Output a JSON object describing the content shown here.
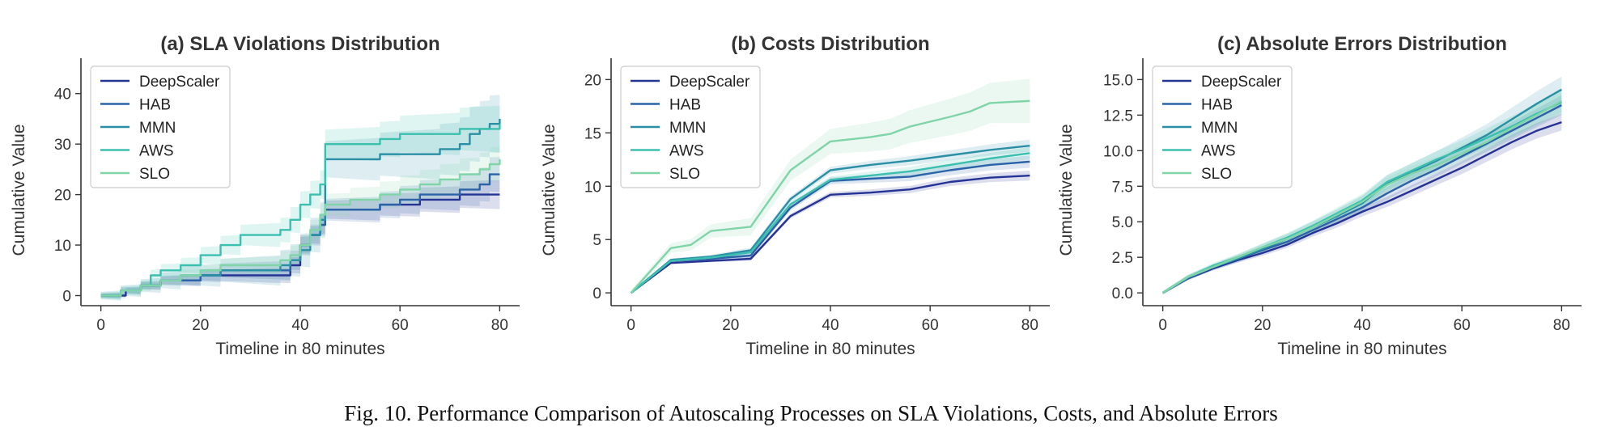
{
  "caption": "Fig. 10.  Performance Comparison of Autoscaling Processes on SLA Violations, Costs, and Absolute Errors",
  "series_colors": [
    "#253494",
    "#2c63a8",
    "#2a8fa5",
    "#3bbfae",
    "#7fd4a8"
  ],
  "chart_data": [
    {
      "type": "line",
      "title": "(a) SLA Violations Distribution",
      "xlabel": "Timeline in 80 minutes",
      "ylabel": "Cumulative Value",
      "xlim": [
        -4,
        84
      ],
      "ylim": [
        -2,
        47
      ],
      "xticks": [
        0,
        20,
        40,
        60,
        80
      ],
      "yticks": [
        0,
        10,
        20,
        30,
        40
      ],
      "ytick_labels": [
        "0",
        "10",
        "20",
        "30",
        "40"
      ],
      "step": true,
      "legend": "top-left",
      "series": [
        {
          "name": "DeepScaler",
          "x": [
            0,
            4,
            5,
            8,
            12,
            16,
            20,
            24,
            28,
            32,
            36,
            38,
            40,
            42,
            44,
            45,
            50,
            54,
            56,
            60,
            64,
            68,
            72,
            76,
            80
          ],
          "y": [
            0,
            0,
            1,
            2,
            3,
            3,
            4,
            4,
            4,
            4,
            4,
            6,
            10,
            12,
            14,
            17,
            17,
            17,
            18,
            18,
            19,
            19,
            20,
            20,
            20
          ],
          "band": 2.5
        },
        {
          "name": "HAB",
          "x": [
            0,
            4,
            8,
            12,
            16,
            20,
            24,
            28,
            32,
            36,
            38,
            40,
            42,
            44,
            45,
            50,
            56,
            60,
            64,
            68,
            72,
            76,
            78,
            80
          ],
          "y": [
            0,
            1,
            2,
            3,
            3,
            4,
            5,
            5,
            5,
            5,
            7,
            10,
            12,
            14,
            17,
            17,
            18,
            19,
            20,
            20,
            21,
            22,
            24,
            24
          ],
          "band": 3
        },
        {
          "name": "MMN",
          "x": [
            0,
            4,
            8,
            12,
            16,
            20,
            24,
            28,
            32,
            36,
            38,
            40,
            42,
            44,
            45,
            50,
            56,
            60,
            64,
            68,
            72,
            74,
            76,
            78,
            80
          ],
          "y": [
            0,
            1,
            2,
            3,
            4,
            4,
            5,
            5,
            5,
            6,
            7,
            9,
            12,
            15,
            27,
            27,
            28,
            28,
            28,
            29,
            30,
            32,
            33,
            34,
            35
          ],
          "band": 5
        },
        {
          "name": "AWS",
          "x": [
            0,
            4,
            8,
            10,
            12,
            16,
            20,
            24,
            28,
            32,
            36,
            38,
            40,
            42,
            44,
            45,
            50,
            56,
            60,
            64,
            68,
            72,
            76,
            80
          ],
          "y": [
            0,
            1,
            2,
            4,
            5,
            6,
            8,
            10,
            12,
            12,
            13,
            15,
            18,
            20,
            22,
            30,
            30,
            31,
            32,
            32,
            32,
            33,
            33,
            34
          ],
          "band": 4
        },
        {
          "name": "SLO",
          "x": [
            0,
            4,
            8,
            12,
            16,
            20,
            24,
            28,
            32,
            36,
            38,
            40,
            42,
            44,
            45,
            50,
            56,
            60,
            64,
            68,
            72,
            76,
            78,
            80
          ],
          "y": [
            0,
            1,
            2,
            3,
            4,
            5,
            6,
            6,
            6,
            7,
            8,
            10,
            13,
            16,
            18,
            19,
            20,
            21,
            22,
            23,
            24,
            25,
            26,
            27
          ],
          "band": 3
        }
      ]
    },
    {
      "type": "line",
      "title": "(b) Costs Distribution",
      "xlabel": "Timeline in 80 minutes",
      "ylabel": "Cumulative Value",
      "xlim": [
        -4,
        84
      ],
      "ylim": [
        -1.2,
        22
      ],
      "xticks": [
        0,
        20,
        40,
        60,
        80
      ],
      "yticks": [
        0,
        5,
        10,
        15,
        20
      ],
      "ytick_labels": [
        "0",
        "5",
        "10",
        "15",
        "20"
      ],
      "step": false,
      "legend": "top-left",
      "series": [
        {
          "name": "DeepScaler",
          "x": [
            0,
            8,
            16,
            24,
            32,
            40,
            48,
            56,
            64,
            72,
            80
          ],
          "y": [
            0,
            2.8,
            3.0,
            3.2,
            7.2,
            9.2,
            9.4,
            9.7,
            10.4,
            10.8,
            11.0
          ],
          "band": 0.4
        },
        {
          "name": "HAB",
          "x": [
            0,
            8,
            16,
            24,
            32,
            40,
            48,
            56,
            64,
            72,
            80
          ],
          "y": [
            0,
            3.0,
            3.2,
            3.5,
            8.0,
            10.5,
            10.7,
            10.9,
            11.5,
            12.0,
            12.3
          ],
          "band": 0.5
        },
        {
          "name": "MMN",
          "x": [
            0,
            8,
            16,
            24,
            32,
            40,
            48,
            56,
            64,
            72,
            80
          ],
          "y": [
            0,
            3.1,
            3.4,
            4.0,
            8.8,
            11.5,
            12.0,
            12.4,
            12.9,
            13.4,
            13.8
          ],
          "band": 0.5
        },
        {
          "name": "AWS",
          "x": [
            0,
            8,
            16,
            24,
            32,
            40,
            48,
            56,
            64,
            72,
            80
          ],
          "y": [
            0,
            3.0,
            3.3,
            3.8,
            8.3,
            10.6,
            11.0,
            11.4,
            12.0,
            12.6,
            13.1
          ],
          "band": 0.5
        },
        {
          "name": "SLO",
          "x": [
            0,
            8,
            12,
            16,
            24,
            32,
            40,
            48,
            52,
            56,
            64,
            68,
            72,
            76,
            80
          ],
          "y": [
            0,
            4.2,
            4.5,
            5.8,
            6.2,
            11.5,
            14.2,
            14.6,
            14.9,
            15.6,
            16.5,
            17.0,
            17.8,
            17.9,
            18.0
          ],
          "band": 1.8
        }
      ]
    },
    {
      "type": "line",
      "title": "(c) Absolute Errors Distribution",
      "xlabel": "Timeline in 80 minutes",
      "ylabel": "Cumulative Value",
      "xlim": [
        -4,
        84
      ],
      "ylim": [
        -0.9,
        16.5
      ],
      "xticks": [
        0,
        20,
        40,
        60,
        80
      ],
      "yticks": [
        0,
        2.5,
        5,
        7.5,
        10,
        12.5,
        15
      ],
      "ytick_labels": [
        "0.0",
        "2.5",
        "5.0",
        "7.5",
        "10.0",
        "12.5",
        "15.0"
      ],
      "step": false,
      "legend": "top-left",
      "series": [
        {
          "name": "DeepScaler",
          "x": [
            0,
            5,
            10,
            15,
            20,
            25,
            30,
            35,
            40,
            45,
            50,
            55,
            60,
            65,
            70,
            75,
            80
          ],
          "y": [
            0,
            1.0,
            1.7,
            2.3,
            2.8,
            3.4,
            4.2,
            4.9,
            5.7,
            6.4,
            7.2,
            8.0,
            8.8,
            9.7,
            10.6,
            11.4,
            12.0
          ],
          "band": 0.5
        },
        {
          "name": "HAB",
          "x": [
            0,
            5,
            10,
            15,
            20,
            25,
            30,
            35,
            40,
            45,
            50,
            55,
            60,
            65,
            70,
            75,
            80
          ],
          "y": [
            0,
            1.0,
            1.8,
            2.4,
            3.0,
            3.6,
            4.4,
            5.2,
            6.0,
            7.0,
            7.9,
            8.7,
            9.6,
            10.5,
            11.4,
            12.3,
            13.2
          ],
          "band": 0.6
        },
        {
          "name": "MMN",
          "x": [
            0,
            5,
            10,
            15,
            20,
            25,
            30,
            35,
            40,
            45,
            50,
            55,
            60,
            65,
            70,
            75,
            80
          ],
          "y": [
            0,
            1.1,
            1.8,
            2.4,
            3.1,
            3.8,
            4.6,
            5.4,
            6.3,
            7.7,
            8.5,
            9.3,
            10.2,
            11.1,
            12.2,
            13.3,
            14.3
          ],
          "band": 0.8
        },
        {
          "name": "AWS",
          "x": [
            0,
            5,
            10,
            15,
            20,
            25,
            30,
            35,
            40,
            45,
            50,
            55,
            60,
            65,
            70,
            75,
            80
          ],
          "y": [
            0,
            1.1,
            1.9,
            2.5,
            3.2,
            3.9,
            4.7,
            5.6,
            6.5,
            7.8,
            8.6,
            9.4,
            10.1,
            10.9,
            11.7,
            12.6,
            13.4
          ],
          "band": 0.7
        },
        {
          "name": "SLO",
          "x": [
            0,
            5,
            10,
            15,
            20,
            25,
            30,
            35,
            40,
            45,
            50,
            55,
            60,
            65,
            70,
            75,
            80
          ],
          "y": [
            0,
            1.1,
            1.8,
            2.5,
            3.2,
            3.8,
            4.6,
            5.5,
            6.4,
            7.6,
            8.4,
            9.0,
            9.8,
            10.6,
            11.6,
            12.5,
            13.5
          ],
          "band": 0.7
        }
      ]
    }
  ]
}
